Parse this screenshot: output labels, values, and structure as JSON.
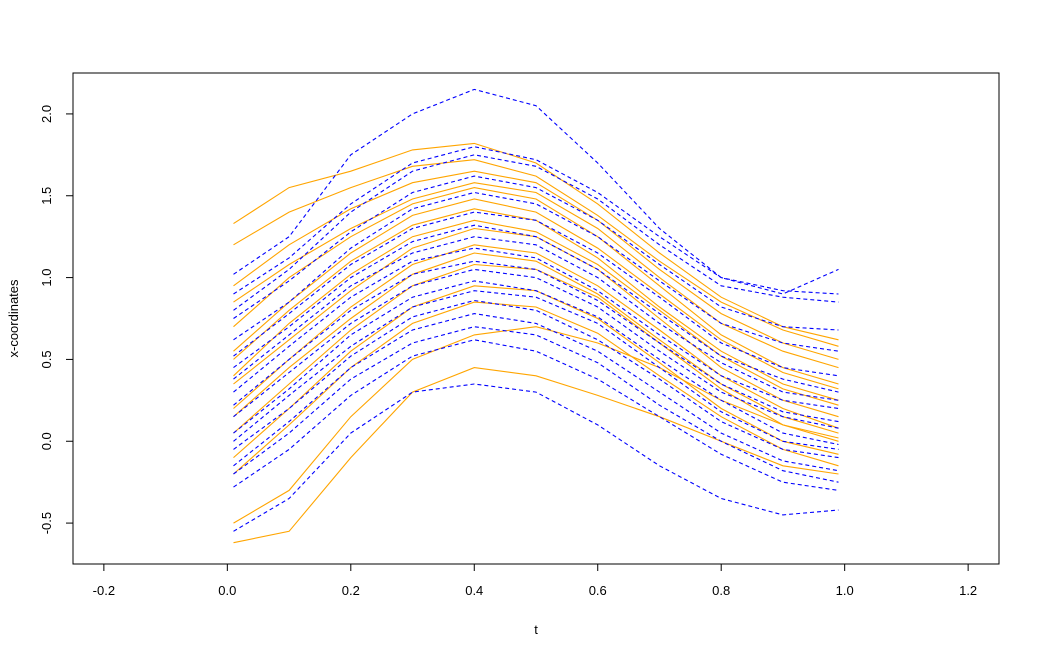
{
  "chart_data": {
    "type": "line",
    "title": "",
    "xlabel": "t",
    "ylabel": "x-coordinates",
    "xlim": [
      -0.25,
      1.25
    ],
    "ylim": [
      -0.75,
      2.25
    ],
    "xticks": [
      "-0.2",
      "0.0",
      "0.2",
      "0.4",
      "0.6",
      "0.8",
      "1.0",
      "1.2"
    ],
    "yticks": [
      "-0.5",
      "0.0",
      "0.5",
      "1.0",
      "1.5",
      "2.0"
    ],
    "grid": false,
    "legend": "none",
    "x": [
      0.01,
      0.1,
      0.2,
      0.3,
      0.4,
      0.5,
      0.6,
      0.7,
      0.8,
      0.9,
      0.99
    ],
    "groups": [
      {
        "color": "#FFA500",
        "dash": "solid"
      },
      {
        "color": "#0000FF",
        "dash": "dashed"
      }
    ],
    "series": [
      {
        "group": 0,
        "values": [
          1.33,
          1.55,
          1.65,
          1.78,
          1.82,
          1.7,
          1.45,
          1.15,
          0.88,
          0.7,
          0.62
        ]
      },
      {
        "group": 0,
        "values": [
          1.2,
          1.4,
          1.55,
          1.68,
          1.72,
          1.62,
          1.38,
          1.1,
          0.85,
          0.68,
          0.58
        ]
      },
      {
        "group": 0,
        "values": [
          0.95,
          1.2,
          1.42,
          1.58,
          1.65,
          1.58,
          1.35,
          1.05,
          0.78,
          0.6,
          0.5
        ]
      },
      {
        "group": 0,
        "values": [
          0.7,
          1.0,
          1.25,
          1.45,
          1.55,
          1.48,
          1.25,
          0.95,
          0.65,
          0.45,
          0.35
        ]
      },
      {
        "group": 0,
        "values": [
          0.5,
          0.8,
          1.1,
          1.32,
          1.42,
          1.35,
          1.12,
          0.82,
          0.55,
          0.35,
          0.25
        ]
      },
      {
        "group": 0,
        "values": [
          0.35,
          0.62,
          0.92,
          1.18,
          1.3,
          1.25,
          1.05,
          0.75,
          0.45,
          0.25,
          0.15
        ]
      },
      {
        "group": 0,
        "values": [
          0.2,
          0.5,
          0.82,
          1.08,
          1.2,
          1.15,
          0.95,
          0.68,
          0.4,
          0.2,
          0.08
        ]
      },
      {
        "group": 0,
        "values": [
          0.05,
          0.35,
          0.68,
          0.95,
          1.08,
          1.05,
          0.88,
          0.6,
          0.32,
          0.1,
          0.0
        ]
      },
      {
        "group": 0,
        "values": [
          -0.1,
          0.2,
          0.55,
          0.82,
          0.95,
          0.92,
          0.75,
          0.48,
          0.2,
          0.0,
          -0.08
        ]
      },
      {
        "group": 0,
        "values": [
          -0.2,
          0.1,
          0.45,
          0.72,
          0.85,
          0.82,
          0.66,
          0.4,
          0.15,
          -0.05,
          -0.15
        ]
      },
      {
        "group": 0,
        "values": [
          -0.5,
          -0.3,
          0.15,
          0.5,
          0.65,
          0.7,
          0.6,
          0.45,
          0.25,
          0.1,
          0.02
        ]
      },
      {
        "group": 0,
        "values": [
          -0.62,
          -0.55,
          -0.1,
          0.3,
          0.45,
          0.4,
          0.28,
          0.15,
          0.0,
          -0.15,
          -0.2
        ]
      },
      {
        "group": 0,
        "values": [
          0.4,
          0.72,
          1.02,
          1.25,
          1.35,
          1.28,
          1.08,
          0.8,
          0.52,
          0.32,
          0.22
        ]
      },
      {
        "group": 0,
        "values": [
          0.85,
          1.08,
          1.3,
          1.48,
          1.58,
          1.52,
          1.3,
          1.0,
          0.72,
          0.55,
          0.45
        ]
      },
      {
        "group": 0,
        "values": [
          0.15,
          0.45,
          0.75,
          1.02,
          1.15,
          1.1,
          0.9,
          0.62,
          0.35,
          0.15,
          0.05
        ]
      },
      {
        "group": 0,
        "values": [
          0.55,
          0.85,
          1.15,
          1.38,
          1.48,
          1.4,
          1.18,
          0.9,
          0.62,
          0.42,
          0.32
        ]
      },
      {
        "group": 1,
        "values": [
          1.02,
          1.25,
          1.75,
          2.0,
          2.15,
          2.05,
          1.7,
          1.3,
          1.0,
          0.9,
          1.05
        ]
      },
      {
        "group": 1,
        "values": [
          0.8,
          1.05,
          1.4,
          1.65,
          1.75,
          1.68,
          1.48,
          1.2,
          0.95,
          0.88,
          0.85
        ]
      },
      {
        "group": 1,
        "values": [
          0.62,
          0.85,
          1.18,
          1.42,
          1.52,
          1.45,
          1.25,
          0.98,
          0.72,
          0.6,
          0.55
        ]
      },
      {
        "group": 1,
        "values": [
          0.45,
          0.7,
          1.0,
          1.22,
          1.32,
          1.25,
          1.05,
          0.78,
          0.52,
          0.38,
          0.3
        ]
      },
      {
        "group": 1,
        "values": [
          0.3,
          0.58,
          0.88,
          1.1,
          1.18,
          1.12,
          0.92,
          0.65,
          0.4,
          0.25,
          0.2
        ]
      },
      {
        "group": 1,
        "values": [
          0.15,
          0.42,
          0.72,
          0.95,
          1.05,
          1.0,
          0.82,
          0.55,
          0.3,
          0.15,
          0.08
        ]
      },
      {
        "group": 1,
        "values": [
          0.0,
          0.28,
          0.58,
          0.82,
          0.92,
          0.88,
          0.72,
          0.45,
          0.18,
          0.0,
          -0.05
        ]
      },
      {
        "group": 1,
        "values": [
          -0.15,
          0.12,
          0.45,
          0.68,
          0.78,
          0.72,
          0.55,
          0.3,
          0.05,
          -0.12,
          -0.18
        ]
      },
      {
        "group": 1,
        "values": [
          -0.28,
          -0.05,
          0.28,
          0.52,
          0.62,
          0.55,
          0.38,
          0.15,
          -0.08,
          -0.25,
          -0.3
        ]
      },
      {
        "group": 1,
        "values": [
          -0.55,
          -0.35,
          0.05,
          0.3,
          0.35,
          0.3,
          0.1,
          -0.15,
          -0.35,
          -0.45,
          -0.42
        ]
      },
      {
        "group": 1,
        "values": [
          0.75,
          0.98,
          1.28,
          1.52,
          1.62,
          1.55,
          1.35,
          1.08,
          0.82,
          0.7,
          0.68
        ]
      },
      {
        "group": 1,
        "values": [
          0.38,
          0.65,
          0.95,
          1.15,
          1.25,
          1.2,
          1.0,
          0.72,
          0.48,
          0.3,
          0.25
        ]
      },
      {
        "group": 1,
        "values": [
          0.22,
          0.5,
          0.8,
          1.02,
          1.1,
          1.05,
          0.86,
          0.6,
          0.35,
          0.18,
          0.12
        ]
      },
      {
        "group": 1,
        "values": [
          0.05,
          0.32,
          0.65,
          0.88,
          0.98,
          0.92,
          0.76,
          0.5,
          0.25,
          0.05,
          -0.02
        ]
      },
      {
        "group": 1,
        "values": [
          -0.2,
          0.05,
          0.38,
          0.6,
          0.7,
          0.65,
          0.48,
          0.22,
          0.0,
          -0.18,
          -0.25
        ]
      },
      {
        "group": 1,
        "values": [
          0.9,
          1.12,
          1.45,
          1.7,
          1.8,
          1.72,
          1.52,
          1.25,
          1.0,
          0.92,
          0.9
        ]
      },
      {
        "group": 1,
        "values": [
          0.52,
          0.78,
          1.08,
          1.3,
          1.4,
          1.35,
          1.15,
          0.88,
          0.6,
          0.45,
          0.4
        ]
      },
      {
        "group": 1,
        "values": [
          -0.05,
          0.2,
          0.52,
          0.76,
          0.86,
          0.8,
          0.62,
          0.38,
          0.12,
          -0.05,
          -0.1
        ]
      }
    ]
  }
}
